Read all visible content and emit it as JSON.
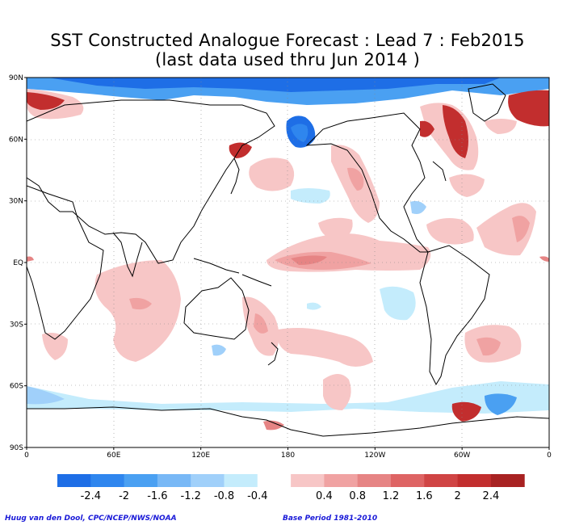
{
  "title_line1": "SST Constructed Analogue Forecast : Lead 7 : Feb2015",
  "title_line2": "(last data used thru Jun 2014 )",
  "lat_labels": [
    "90N",
    "60N",
    "30N",
    "EQ",
    "30S",
    "60S",
    "90S"
  ],
  "lon_labels": [
    "0",
    "60E",
    "120E",
    "180",
    "120W",
    "60W",
    "0"
  ],
  "colorbar": {
    "colors": [
      "#1e6ee6",
      "#2f86ee",
      "#4aa0f2",
      "#78b8f6",
      "#a0d0fa",
      "#c4ecfc",
      "#ffffff",
      "#f7c6c6",
      "#f0a2a2",
      "#e68484",
      "#de6464",
      "#d04444",
      "#c22e2e",
      "#a82222"
    ],
    "labels": [
      "-2.4",
      "-2",
      "-1.6",
      "-1.2",
      "-0.8",
      "-0.4",
      "0.4",
      "0.8",
      "1.2",
      "1.6",
      "2",
      "2.4"
    ]
  },
  "credit_left": "Huug van den Dool, CPC/NCEP/NWS/NOAA",
  "credit_right": "Base Period 1981-2010",
  "colors": {
    "positive_light": "#f7c6c6",
    "positive_mid": "#e68484",
    "positive_dark": "#c22e2e",
    "negative_light": "#c4ecfc",
    "negative_mid": "#4aa0f2",
    "negative_dark": "#1e6ee6"
  }
}
